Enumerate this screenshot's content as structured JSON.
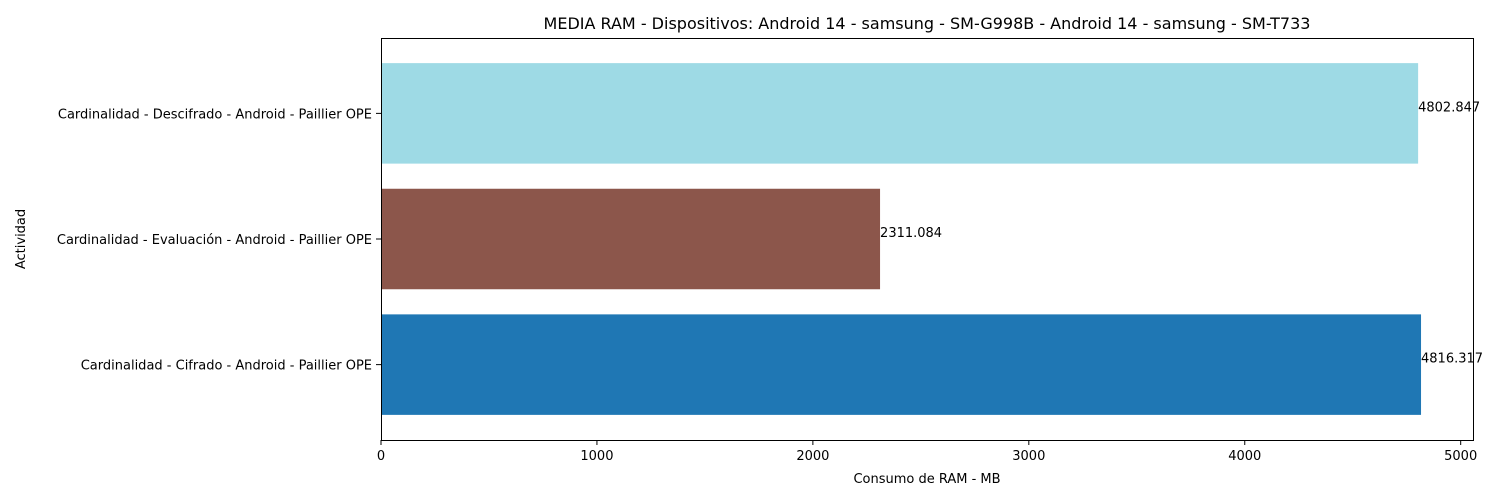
{
  "chart_data": {
    "type": "bar",
    "orientation": "horizontal",
    "title": "MEDIA RAM - Dispositivos: Android 14 - samsung - SM-G998B - Android 14 - samsung - SM-T733",
    "xlabel": "Consumo de RAM - MB",
    "ylabel": "Actividad",
    "categories": [
      "Cardinalidad - Cifrado - Android - Paillier OPE",
      "Cardinalidad - Evaluación - Android - Paillier OPE",
      "Cardinalidad - Descifrado - Android - Paillier OPE"
    ],
    "values": [
      4816.317,
      2311.084,
      4802.847
    ],
    "value_labels": [
      "4816.317",
      "2311.084",
      "4802.847"
    ],
    "colors": [
      "#1f77b4",
      "#8c564b",
      "#9edae5"
    ],
    "xlim": [
      0,
      5057
    ],
    "xticks": [
      0,
      1000,
      2000,
      3000,
      4000,
      5000
    ],
    "xtick_labels": [
      "0",
      "1000",
      "2000",
      "3000",
      "4000",
      "5000"
    ],
    "grid": false,
    "legend": false
  }
}
